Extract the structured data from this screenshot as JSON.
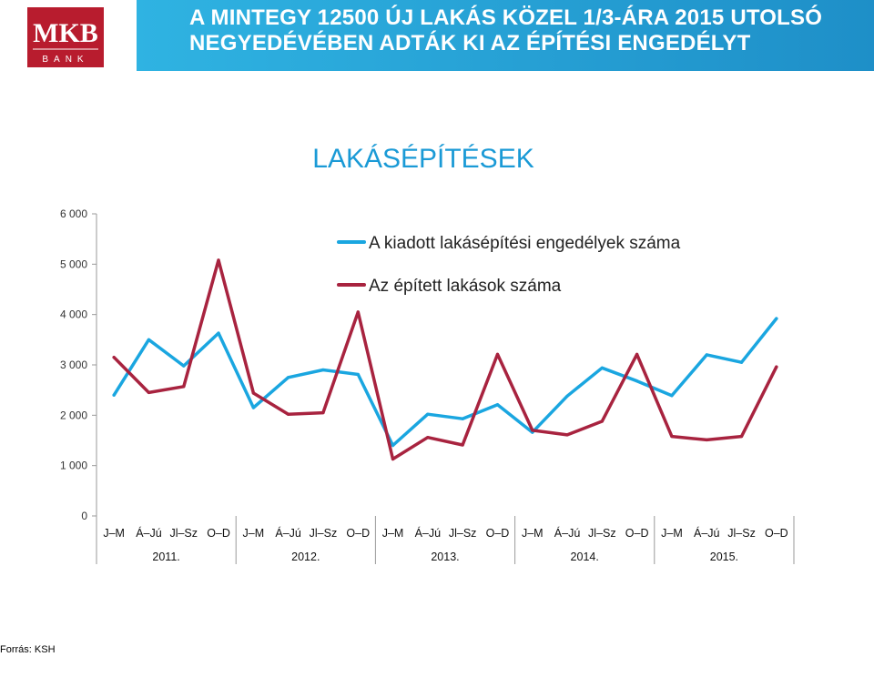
{
  "header": {
    "title": "A MINTEGY 12500 ÚJ LAKÁS KÖZEL 1/3-ÁRA 2015 UTOLSÓ NEGYEDÉVÉBEN ADTÁK KI AZ ÉPÍTÉSI ENGEDÉLYT",
    "brand_color": "#1a9ad6"
  },
  "logo": {
    "text": "MKB",
    "subtext": "BANK",
    "color": "#b81c2e"
  },
  "footer": {
    "source": "Forrás: KSH"
  },
  "chart_data": {
    "type": "line",
    "title": "LAKÁSÉPÍTÉSEK",
    "xlabel": "",
    "ylabel": "",
    "ylim": [
      0,
      6000
    ],
    "yticks": [
      "0",
      "1 000",
      "2 000",
      "3 000",
      "4 000",
      "5 000",
      "6 000"
    ],
    "ytick_values": [
      0,
      1000,
      2000,
      3000,
      4000,
      5000,
      6000
    ],
    "categories": [
      "J–M",
      "Á–Jú",
      "Jl–Sz",
      "O–D",
      "J–M",
      "Á–Jú",
      "Jl–Sz",
      "O–D",
      "J–M",
      "Á–Jú",
      "Jl–Sz",
      "O–D",
      "J–M",
      "Á–Jú",
      "Jl–Sz",
      "O–D",
      "J–M",
      "Á–Jú",
      "Jl–Sz",
      "O–D"
    ],
    "years": [
      "2011.",
      "2012.",
      "2013.",
      "2014.",
      "2015."
    ],
    "legend_position": "top-right",
    "grid": false,
    "series": [
      {
        "name": "A kiadott lakásépítési engedélyek száma",
        "color": "#1aa6e0",
        "values": [
          2400,
          3500,
          2980,
          3630,
          2150,
          2750,
          2900,
          2810,
          1400,
          2020,
          1930,
          2210,
          1660,
          2380,
          2940,
          2680,
          2390,
          3200,
          3050,
          3920
        ]
      },
      {
        "name": "Az épített lakások száma",
        "color": "#a8233f",
        "values": [
          3150,
          2450,
          2570,
          5080,
          2440,
          2020,
          2050,
          4050,
          1130,
          1560,
          1410,
          3210,
          1700,
          1610,
          1880,
          3210,
          1580,
          1510,
          1580,
          2960
        ]
      }
    ]
  }
}
